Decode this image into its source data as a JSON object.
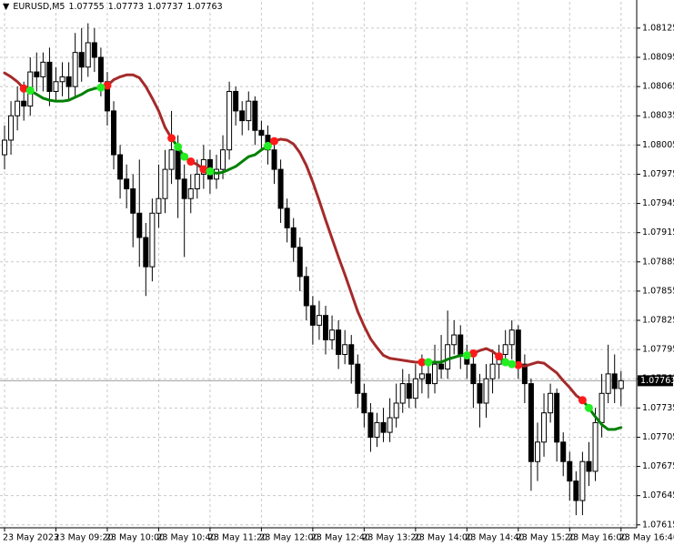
{
  "chart_data": {
    "type": "candlestick",
    "symbol": "EURUSD,M5",
    "categories": [
      "23 May 2023",
      null,
      null,
      null,
      null,
      null,
      null,
      null,
      "23 May 09:20",
      null,
      null,
      null,
      null,
      null,
      null,
      null,
      "23 May 10:00",
      null,
      null,
      null,
      null,
      null,
      null,
      null,
      "23 May 10:40",
      null,
      null,
      null,
      null,
      null,
      null,
      null,
      "23 May 11:20",
      null,
      null,
      null,
      null,
      null,
      null,
      null,
      "23 May 12:00",
      null,
      null,
      null,
      null,
      null,
      null,
      null,
      "23 May 12:40",
      null,
      null,
      null,
      null,
      null,
      null,
      null,
      "23 May 13:20",
      null,
      null,
      null,
      null,
      null,
      null,
      null,
      "23 May 14:00",
      null,
      null,
      null,
      null,
      null,
      null,
      null,
      "23 May 14:40",
      null,
      null,
      null,
      null,
      null,
      null,
      null,
      "23 May 15:20",
      null,
      null,
      null,
      null,
      null,
      null,
      null,
      "23 May 16:00",
      null,
      null,
      null,
      null,
      null,
      null,
      null,
      "23 May 16:40"
    ],
    "open": [
      1.07995,
      1.0801,
      1.08035,
      1.0805,
      1.08045,
      1.0808,
      1.08075,
      1.0809,
      1.0806,
      1.0807,
      1.08075,
      1.08065,
      1.081,
      1.08085,
      1.0811,
      1.08095,
      1.0807,
      1.0804,
      1.07995,
      1.0797,
      1.0796,
      1.07935,
      1.0791,
      1.0788,
      1.07935,
      1.0795,
      1.0798,
      1.08,
      1.0797,
      1.0795,
      1.0796,
      1.07975,
      1.0799,
      1.0797,
      1.0798,
      1.08,
      1.0806,
      1.0804,
      1.0803,
      1.0805,
      1.0802,
      1.08015,
      1.08,
      1.0798,
      1.0794,
      1.0792,
      1.079,
      1.0787,
      1.0784,
      1.0782,
      1.0783,
      1.07805,
      1.07815,
      1.0779,
      1.078,
      1.0778,
      1.0775,
      1.0773,
      1.07705,
      1.0772,
      1.0771,
      1.07725,
      1.0774,
      1.0776,
      1.07745,
      1.07765,
      1.0777,
      1.0776,
      1.0778,
      1.07775,
      1.078,
      1.0781,
      1.0779,
      1.0778,
      1.0776,
      1.0774,
      1.07765,
      1.0778,
      1.0779,
      1.078,
      1.07815,
      1.0778,
      1.0776,
      1.0768,
      1.077,
      1.0773,
      1.0775,
      1.077,
      1.0768,
      1.0766,
      1.0764,
      1.0768,
      1.0767,
      1.0772,
      1.0775,
      1.0777,
      1.07755
    ],
    "high": [
      1.08025,
      1.0805,
      1.08065,
      1.0807,
      1.08095,
      1.081,
      1.081,
      1.08105,
      1.08085,
      1.0809,
      1.0809,
      1.0812,
      1.08125,
      1.0813,
      1.08125,
      1.08105,
      1.0808,
      1.0805,
      1.08005,
      1.07985,
      1.07975,
      1.0799,
      1.07925,
      1.0795,
      1.07985,
      1.08,
      1.0804,
      1.08015,
      1.07985,
      1.07975,
      1.0799,
      1.08005,
      1.08,
      1.07995,
      1.08015,
      1.0807,
      1.08065,
      1.0805,
      1.0806,
      1.08055,
      1.0803,
      1.08025,
      1.0801,
      1.0799,
      1.0795,
      1.0793,
      1.0791,
      1.0788,
      1.0785,
      1.07845,
      1.0784,
      1.0783,
      1.07825,
      1.07815,
      1.0781,
      1.0779,
      1.0776,
      1.0774,
      1.0773,
      1.07735,
      1.07745,
      1.0776,
      1.07775,
      1.0777,
      1.0778,
      1.0779,
      1.07785,
      1.078,
      1.0781,
      1.07835,
      1.07825,
      1.0782,
      1.078,
      1.0779,
      1.0777,
      1.0778,
      1.07795,
      1.078,
      1.07815,
      1.07825,
      1.0782,
      1.0779,
      1.07765,
      1.0772,
      1.0775,
      1.0776,
      1.07755,
      1.0771,
      1.0769,
      1.0767,
      1.0769,
      1.077,
      1.07735,
      1.0777,
      1.078,
      1.0779,
      1.07773
    ],
    "low": [
      1.0798,
      1.07995,
      1.0802,
      1.0803,
      1.08035,
      1.0806,
      1.0806,
      1.08045,
      1.0805,
      1.08055,
      1.0805,
      1.08055,
      1.0807,
      1.08075,
      1.0808,
      1.08055,
      1.08025,
      1.0798,
      1.0795,
      1.0794,
      1.079,
      1.0788,
      1.0785,
      1.07865,
      1.0792,
      1.07935,
      1.07965,
      1.0793,
      1.0789,
      1.07935,
      1.0795,
      1.0796,
      1.07955,
      1.0796,
      1.0797,
      1.0799,
      1.08025,
      1.08015,
      1.0802,
      1.08005,
      1.08,
      1.07985,
      1.07965,
      1.07925,
      1.07905,
      1.07885,
      1.07855,
      1.07825,
      1.078,
      1.07805,
      1.0779,
      1.07795,
      1.07775,
      1.0778,
      1.0776,
      1.07735,
      1.07715,
      1.0769,
      1.07695,
      1.077,
      1.077,
      1.07715,
      1.0773,
      1.07735,
      1.07735,
      1.0775,
      1.07745,
      1.0775,
      1.07765,
      1.07765,
      1.0779,
      1.07775,
      1.07765,
      1.07735,
      1.07715,
      1.07725,
      1.0775,
      1.07765,
      1.0778,
      1.07785,
      1.07765,
      1.0774,
      1.0765,
      1.0766,
      1.07685,
      1.0772,
      1.0768,
      1.07665,
      1.0764,
      1.07625,
      1.07625,
      1.07655,
      1.0766,
      1.07705,
      1.0774,
      1.0774,
      1.07737
    ],
    "close": [
      1.0801,
      1.08035,
      1.0805,
      1.08045,
      1.0808,
      1.08075,
      1.0809,
      1.0806,
      1.0807,
      1.08075,
      1.08065,
      1.081,
      1.08085,
      1.0811,
      1.08095,
      1.0807,
      1.0804,
      1.07995,
      1.0797,
      1.0796,
      1.07935,
      1.0791,
      1.0788,
      1.07935,
      1.0795,
      1.0798,
      1.08,
      1.0797,
      1.0795,
      1.0796,
      1.07975,
      1.0799,
      1.0797,
      1.0798,
      1.08,
      1.0806,
      1.0804,
      1.0803,
      1.0805,
      1.0802,
      1.08015,
      1.08,
      1.0798,
      1.0794,
      1.0792,
      1.079,
      1.0787,
      1.0784,
      1.0782,
      1.0783,
      1.07805,
      1.07815,
      1.0779,
      1.078,
      1.0778,
      1.0775,
      1.0773,
      1.07705,
      1.0772,
      1.0771,
      1.07725,
      1.0774,
      1.0776,
      1.07745,
      1.07765,
      1.0777,
      1.0776,
      1.0778,
      1.07775,
      1.078,
      1.0781,
      1.0779,
      1.0778,
      1.0776,
      1.0774,
      1.07765,
      1.0778,
      1.0779,
      1.078,
      1.07815,
      1.0778,
      1.0776,
      1.0768,
      1.077,
      1.0773,
      1.0775,
      1.077,
      1.0768,
      1.0766,
      1.0764,
      1.0768,
      1.0767,
      1.0772,
      1.0775,
      1.0777,
      1.07755,
      1.07763
    ],
    "series": [
      {
        "color": "#a52a2a",
        "marker_color": "#ff1a1a",
        "values": [
          1.08079,
          1.08075,
          1.0807,
          1.08063,
          null,
          null,
          null,
          null,
          null,
          null,
          null,
          null,
          null,
          null,
          null,
          1.08064,
          1.08066,
          1.08072,
          1.08075,
          1.08077,
          1.08077,
          1.08074,
          1.08065,
          1.08053,
          1.0804,
          1.08023,
          1.08012,
          null,
          1.07993,
          1.07988,
          1.07985,
          1.0798,
          null,
          null,
          null,
          null,
          null,
          null,
          null,
          null,
          null,
          1.08004,
          1.08009,
          1.08011,
          1.0801,
          1.08006,
          1.07997,
          1.07984,
          1.07967,
          1.07948,
          1.07928,
          1.07909,
          1.0789,
          1.07872,
          1.07853,
          1.07834,
          1.07819,
          1.07806,
          1.07797,
          1.07789,
          1.07786,
          1.07785,
          1.07784,
          1.07783,
          1.07782,
          1.07782,
          null,
          null,
          null,
          null,
          null,
          null,
          1.07789,
          1.07791,
          1.07794,
          1.07796,
          1.07793,
          1.07788,
          null,
          1.0778,
          1.07779,
          1.07778,
          1.0778,
          1.07782,
          1.07781,
          1.07776,
          1.07771,
          1.07763,
          1.07756,
          1.07748,
          1.07743,
          null,
          null,
          null,
          null,
          null,
          null
        ]
      },
      {
        "color": "#008000",
        "marker_color": "#22ee22",
        "values": [
          null,
          null,
          null,
          1.08063,
          1.08061,
          1.08057,
          1.08053,
          1.08051,
          1.0805,
          1.0805,
          1.08051,
          1.08054,
          1.08057,
          1.08061,
          1.08063,
          1.08064,
          null,
          null,
          null,
          null,
          null,
          null,
          null,
          null,
          null,
          null,
          1.08012,
          1.08003,
          1.07993,
          null,
          null,
          1.0798,
          1.07978,
          1.07976,
          1.07977,
          1.0798,
          1.07983,
          1.07988,
          1.07993,
          1.07995,
          1.08,
          1.08004,
          null,
          null,
          null,
          null,
          null,
          null,
          null,
          null,
          null,
          null,
          null,
          null,
          null,
          null,
          null,
          null,
          null,
          null,
          null,
          null,
          null,
          null,
          null,
          1.07782,
          1.07782,
          1.07782,
          1.07782,
          1.07785,
          1.07787,
          1.07789,
          1.07789,
          null,
          null,
          null,
          null,
          1.07788,
          1.07782,
          1.0778,
          null,
          null,
          null,
          null,
          null,
          null,
          null,
          null,
          null,
          null,
          1.07743,
          1.07735,
          1.07726,
          1.07718,
          1.07713,
          1.07713,
          1.07715
        ]
      }
    ],
    "ylim": [
      1.07612,
      1.08152
    ],
    "yticks": [
      1.07615,
      1.07645,
      1.07675,
      1.07705,
      1.07735,
      1.07765,
      1.07795,
      1.07825,
      1.07855,
      1.07885,
      1.07915,
      1.07945,
      1.07975,
      1.08005,
      1.08035,
      1.08065,
      1.08095,
      1.08125
    ],
    "grid": true,
    "bull_color": "#ffffff",
    "bear_color": "#000000"
  }
}
